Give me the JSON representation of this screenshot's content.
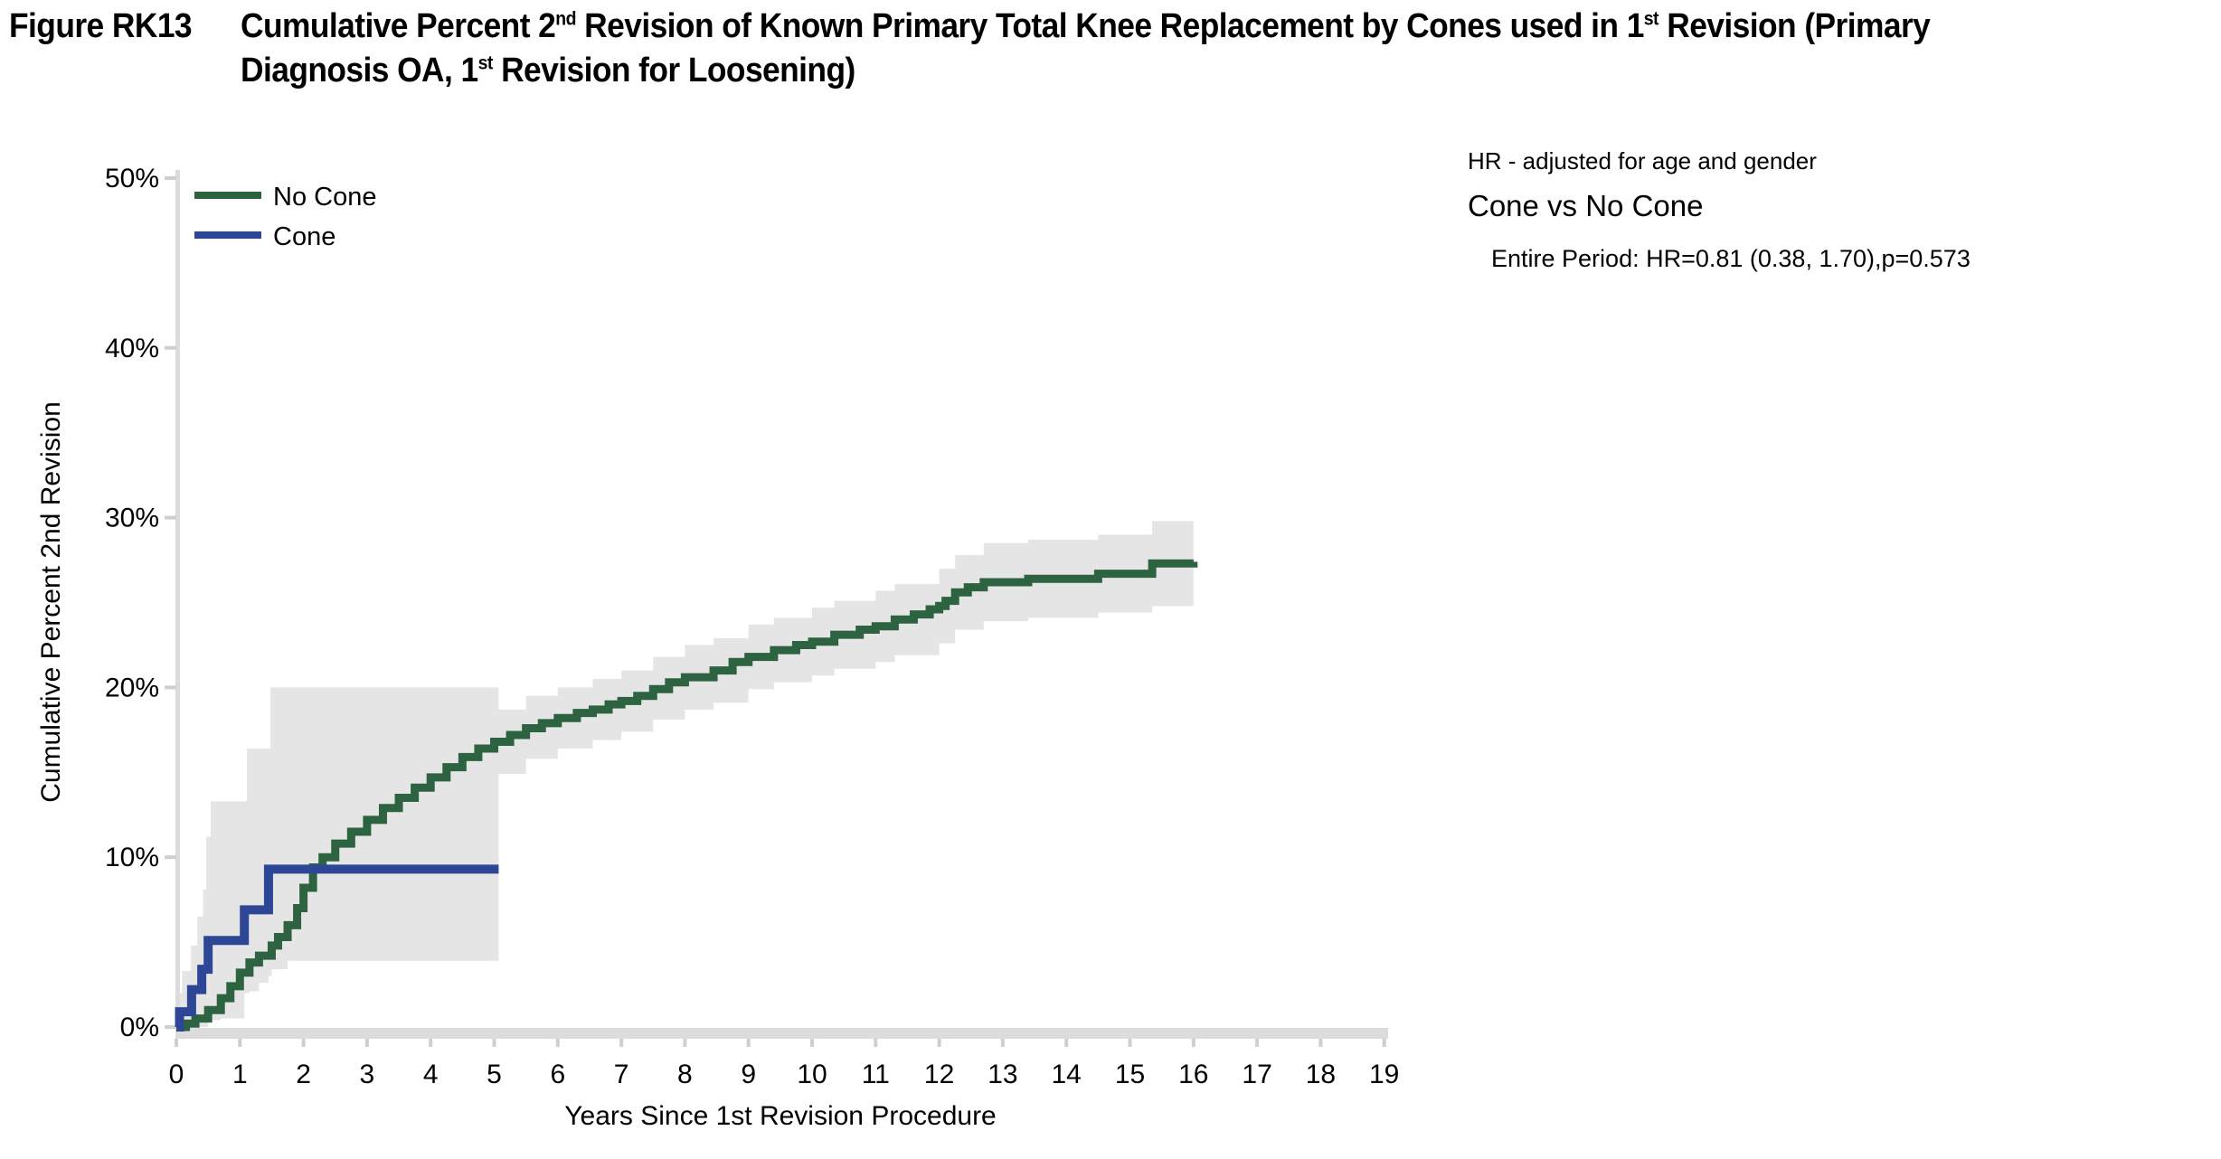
{
  "title": {
    "figure_label": "Figure RK13",
    "full": "Figure RK13  Cumulative Percent 2nd Revision of Known Primary Total Knee Replacement by Cones used in 1st Revision (Primary Diagnosis OA, 1st Revision for Loosening)",
    "line1_segments": [
      [
        "t",
        "Cumulative Percent 2"
      ],
      [
        "sup",
        "nd"
      ],
      [
        "t",
        " Revision of Known Primary Total Knee Replacement by Cones used in 1"
      ],
      [
        "sup",
        "st"
      ],
      [
        "t",
        " Revision (Primary"
      ]
    ],
    "line2_segments": [
      [
        "t",
        "Diagnosis OA, 1"
      ],
      [
        "sup",
        "st"
      ],
      [
        "t",
        " Revision for Loosening)"
      ]
    ]
  },
  "annotation": {
    "line1": "HR - adjusted for age and gender",
    "line2": "Cone vs No Cone",
    "line3": "Entire Period: HR=0.81 (0.38, 1.70),p=0.573"
  },
  "colors": {
    "no_cone_green": "#2d6340",
    "cone_blue": "#2d4696",
    "ci_band_gray": "#e5e5e5",
    "axis_gray": "#dcdcdc",
    "tick_gray": "#cfcfcf",
    "text_black": "#000000"
  },
  "chart_data": {
    "type": "line",
    "subtype": "step-after cumulative incidence (Kaplan-Meier) with 95% CI bands",
    "xlabel": "Years Since 1st Revision Procedure",
    "ylabel": "Cumulative Percent 2nd Revision",
    "xlim": [
      0,
      19
    ],
    "ylim": [
      0,
      50
    ],
    "xticks": [
      0,
      1,
      2,
      3,
      4,
      5,
      6,
      7,
      8,
      9,
      10,
      11,
      12,
      13,
      14,
      15,
      16,
      17,
      18,
      19
    ],
    "yticks": [
      0,
      10,
      20,
      30,
      40,
      50
    ],
    "ytick_suffix": "%",
    "grid": false,
    "legend_position": "top-left-inside",
    "legend": [
      "No Cone",
      "Cone"
    ],
    "series": [
      {
        "name": "No Cone",
        "color": "#2d6340",
        "ci_color": "#e5e5e5",
        "points": [
          [
            0,
            0
          ],
          [
            0.15,
            0.2
          ],
          [
            0.3,
            0.5
          ],
          [
            0.5,
            1.0
          ],
          [
            0.7,
            1.7
          ],
          [
            0.85,
            2.4
          ],
          [
            1.0,
            3.2
          ],
          [
            1.15,
            3.8
          ],
          [
            1.3,
            4.2
          ],
          [
            1.5,
            4.8
          ],
          [
            1.6,
            5.3
          ],
          [
            1.75,
            6.0
          ],
          [
            1.9,
            7.0
          ],
          [
            2.0,
            8.2
          ],
          [
            2.15,
            9.4
          ],
          [
            2.3,
            10.0
          ],
          [
            2.5,
            10.8
          ],
          [
            2.75,
            11.5
          ],
          [
            3.0,
            12.2
          ],
          [
            3.25,
            12.9
          ],
          [
            3.5,
            13.5
          ],
          [
            3.75,
            14.1
          ],
          [
            4.0,
            14.7
          ],
          [
            4.25,
            15.3
          ],
          [
            4.5,
            15.9
          ],
          [
            4.75,
            16.4
          ],
          [
            5.0,
            16.8
          ],
          [
            5.25,
            17.2
          ],
          [
            5.5,
            17.6
          ],
          [
            5.75,
            17.9
          ],
          [
            6.0,
            18.2
          ],
          [
            6.3,
            18.5
          ],
          [
            6.55,
            18.7
          ],
          [
            6.8,
            19.0
          ],
          [
            7.0,
            19.2
          ],
          [
            7.25,
            19.5
          ],
          [
            7.5,
            19.9
          ],
          [
            7.75,
            20.3
          ],
          [
            8.0,
            20.6
          ],
          [
            8.45,
            21.0
          ],
          [
            8.75,
            21.5
          ],
          [
            9.0,
            21.8
          ],
          [
            9.4,
            22.2
          ],
          [
            9.75,
            22.5
          ],
          [
            10.0,
            22.7
          ],
          [
            10.35,
            23.1
          ],
          [
            10.75,
            23.4
          ],
          [
            11.0,
            23.6
          ],
          [
            11.3,
            24.0
          ],
          [
            11.6,
            24.3
          ],
          [
            11.85,
            24.6
          ],
          [
            12.0,
            24.8
          ],
          [
            12.1,
            25.1
          ],
          [
            12.25,
            25.6
          ],
          [
            12.45,
            25.9
          ],
          [
            12.7,
            26.2
          ],
          [
            13.4,
            26.4
          ],
          [
            14.5,
            26.7
          ],
          [
            15.35,
            27.3
          ],
          [
            16.0,
            27.4
          ]
        ],
        "ci_upper": [
          [
            0,
            0.2
          ],
          [
            0.3,
            0.9
          ],
          [
            0.5,
            1.7
          ],
          [
            0.7,
            2.6
          ],
          [
            0.85,
            3.3
          ],
          [
            1.0,
            4.3
          ],
          [
            1.3,
            5.4
          ],
          [
            1.5,
            6.2
          ],
          [
            1.75,
            7.6
          ],
          [
            2.0,
            9.9
          ],
          [
            2.15,
            11.1
          ],
          [
            2.5,
            12.6
          ],
          [
            3.0,
            14.0
          ],
          [
            3.5,
            15.4
          ],
          [
            4.0,
            16.6
          ],
          [
            4.5,
            17.8
          ],
          [
            5.0,
            18.7
          ],
          [
            5.5,
            19.5
          ],
          [
            6.0,
            20.0
          ],
          [
            6.55,
            20.5
          ],
          [
            7.0,
            21.0
          ],
          [
            7.5,
            21.8
          ],
          [
            8.0,
            22.5
          ],
          [
            8.45,
            22.9
          ],
          [
            9.0,
            23.7
          ],
          [
            9.4,
            24.1
          ],
          [
            10.0,
            24.7
          ],
          [
            10.35,
            25.1
          ],
          [
            11.0,
            25.7
          ],
          [
            11.3,
            26.1
          ],
          [
            12.0,
            27.0
          ],
          [
            12.25,
            27.8
          ],
          [
            12.7,
            28.5
          ],
          [
            13.4,
            28.7
          ],
          [
            14.5,
            29.0
          ],
          [
            15.35,
            29.8
          ],
          [
            16.0,
            30.0
          ]
        ],
        "ci_lower": [
          [
            0,
            0
          ],
          [
            0.3,
            0.2
          ],
          [
            0.5,
            0.4
          ],
          [
            0.7,
            0.9
          ],
          [
            0.85,
            1.5
          ],
          [
            1.0,
            2.1
          ],
          [
            1.3,
            3.0
          ],
          [
            1.5,
            3.4
          ],
          [
            1.75,
            4.5
          ],
          [
            2.0,
            6.5
          ],
          [
            2.15,
            7.7
          ],
          [
            2.5,
            9.0
          ],
          [
            3.0,
            10.4
          ],
          [
            3.5,
            11.7
          ],
          [
            4.0,
            12.8
          ],
          [
            4.5,
            14.0
          ],
          [
            5.0,
            14.9
          ],
          [
            5.5,
            15.8
          ],
          [
            6.0,
            16.4
          ],
          [
            6.55,
            16.9
          ],
          [
            7.0,
            17.4
          ],
          [
            7.5,
            18.1
          ],
          [
            8.0,
            18.7
          ],
          [
            8.45,
            19.1
          ],
          [
            9.0,
            19.9
          ],
          [
            9.4,
            20.3
          ],
          [
            10.0,
            20.7
          ],
          [
            10.35,
            21.1
          ],
          [
            11.0,
            21.5
          ],
          [
            11.3,
            21.9
          ],
          [
            12.0,
            22.6
          ],
          [
            12.25,
            23.4
          ],
          [
            12.7,
            23.9
          ],
          [
            13.4,
            24.1
          ],
          [
            14.5,
            24.4
          ],
          [
            15.35,
            24.8
          ],
          [
            16.0,
            24.8
          ]
        ]
      },
      {
        "name": "Cone",
        "color": "#2d4696",
        "ci_color": "#e5e5e5",
        "points": [
          [
            0,
            0
          ],
          [
            0.05,
            0.9
          ],
          [
            0.24,
            2.2
          ],
          [
            0.4,
            3.4
          ],
          [
            0.5,
            5.1
          ],
          [
            1.07,
            6.9
          ],
          [
            1.45,
            9.3
          ],
          [
            5.07,
            9.3
          ]
        ],
        "ci_upper": [
          [
            0.05,
            2.0
          ],
          [
            0.09,
            3.3
          ],
          [
            0.23,
            4.8
          ],
          [
            0.33,
            6.5
          ],
          [
            0.42,
            8.1
          ],
          [
            0.47,
            11.2
          ],
          [
            0.54,
            13.3
          ],
          [
            1.11,
            16.4
          ],
          [
            1.48,
            20.0
          ],
          [
            5.07,
            20.0
          ]
        ],
        "ci_lower": [
          [
            0.05,
            0
          ],
          [
            0.5,
            0.5
          ],
          [
            1.07,
            2.0
          ],
          [
            1.15,
            2.6
          ],
          [
            1.45,
            3.9
          ],
          [
            5.07,
            3.9
          ]
        ]
      }
    ],
    "hazard_ratio_note": {
      "header": "HR - adjusted for age and gender",
      "comparison": "Cone vs No Cone",
      "result": "Entire Period: HR=0.81 (0.38, 1.70),p=0.573"
    }
  }
}
